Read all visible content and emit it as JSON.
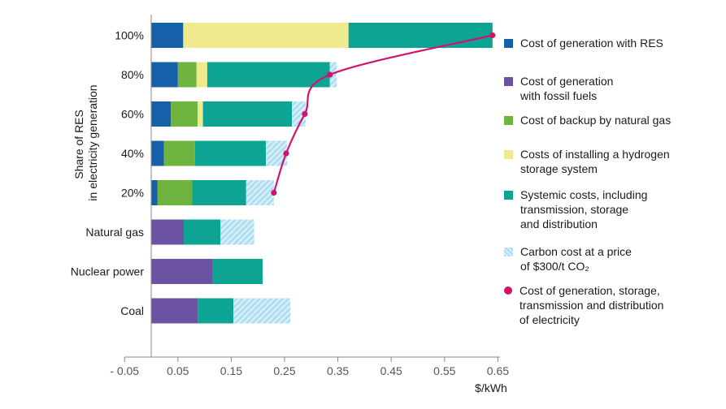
{
  "chart_data": {
    "type": "bar",
    "orientation": "horizontal",
    "stacked": true,
    "ylabel": "Share of RES\nin electricity generation",
    "xunit": "$/kWh",
    "xlim": [
      -0.05,
      0.65
    ],
    "xticks": [
      -0.05,
      0.05,
      0.15,
      0.25,
      0.35,
      0.45,
      0.55,
      0.65
    ],
    "xtick_labels": [
      "- 0.05",
      "0.05",
      "0.15",
      "0.25",
      "0.35",
      "0.45",
      "0.55",
      "0.65"
    ],
    "categories": [
      "100%",
      "80%",
      "60%",
      "40%",
      "20%",
      "Natural gas",
      "Nuclear power",
      "Coal"
    ],
    "series": [
      {
        "name": "Cost of generation with RES",
        "color": "#1560a8",
        "pattern": "solid",
        "values": [
          0.06,
          0.05,
          0.037,
          0.024,
          0.012,
          0,
          0,
          0
        ]
      },
      {
        "name": "Cost of generation\nwith fossil fuels",
        "color": "#6b52a3",
        "pattern": "solid",
        "values": [
          0,
          0,
          0,
          0,
          0,
          0.061,
          0.115,
          0.087
        ]
      },
      {
        "name": "Cost of backup by natural gas",
        "color": "#6fb43f",
        "pattern": "solid",
        "values": [
          0,
          0.035,
          0.05,
          0.058,
          0.065,
          0,
          0,
          0
        ]
      },
      {
        "name": "Costs of installing a hydrogen\nstorage system",
        "color": "#f0ea8e",
        "pattern": "solid",
        "values": [
          0.31,
          0.02,
          0.01,
          0,
          0,
          0,
          0,
          0
        ]
      },
      {
        "name": "Systemic costs, including\ntransmission, storage\nand distribution",
        "color": "#0ea493",
        "pattern": "solid",
        "values": [
          0.27,
          0.23,
          0.167,
          0.133,
          0.101,
          0.069,
          0.094,
          0.067
        ]
      },
      {
        "name": "Carbon cost at a price\nof $300/t CO₂",
        "color": "#a9dcf0",
        "pattern": "hatch",
        "values": [
          0,
          0.013,
          0.026,
          0.04,
          0.052,
          0.063,
          0,
          0.107
        ]
      }
    ],
    "line_series": {
      "name": "Cost of generation, storage,\ntransmission and distribution\nof electricity",
      "color": "#d0136d",
      "categories": [
        "20%",
        "40%",
        "60%",
        "80%",
        "100%"
      ],
      "values": [
        0.23,
        0.253,
        0.288,
        0.335,
        0.64
      ]
    },
    "legend_position": "right",
    "grid": false
  }
}
